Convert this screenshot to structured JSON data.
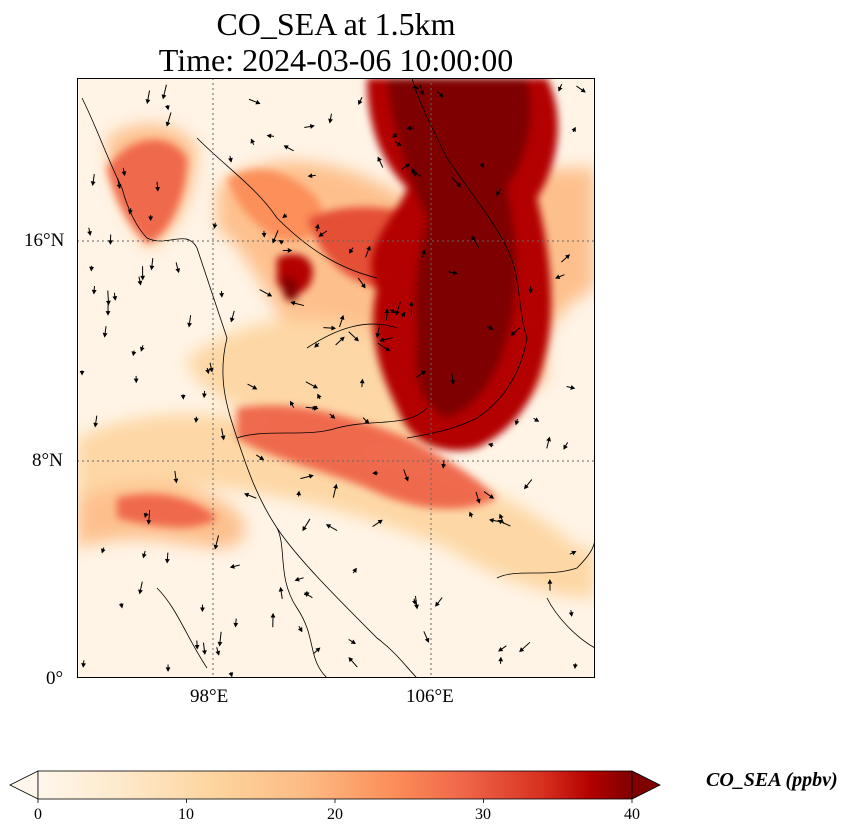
{
  "title": {
    "line1": "CO_SEA at 1.5km",
    "line2": "Time: 2024-03-06 10:00:00"
  },
  "map": {
    "lat_ticks": [
      "16°N",
      "8°N",
      "0°"
    ],
    "lon_ticks": [
      "98°E",
      "106°E"
    ],
    "gridlines": "dotted",
    "colormap": "OrRd",
    "colors": {
      "low": "#fff7ec",
      "mid": "#fdbb84",
      "high": "#ef6548",
      "max": "#7f0000",
      "coastline": "#000000"
    }
  },
  "colorbar": {
    "label": "CO_SEA (ppbv)",
    "ticks": [
      "0",
      "10",
      "20",
      "30",
      "40"
    ],
    "range": [
      0,
      40
    ],
    "extend": "both"
  }
}
